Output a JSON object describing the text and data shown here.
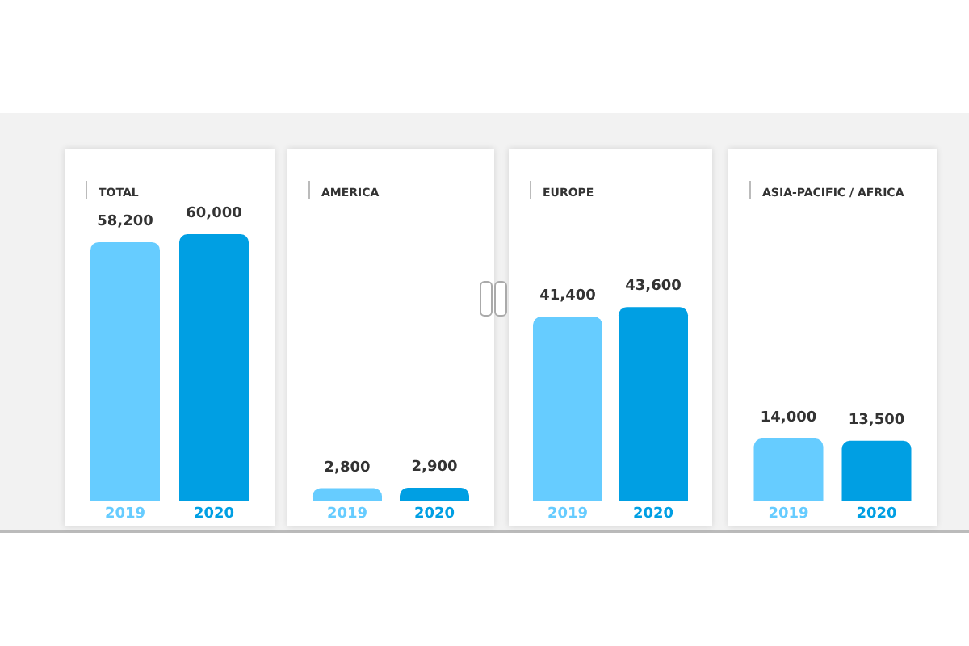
{
  "chart_data": [
    {
      "type": "bar",
      "title": "TOTAL",
      "categories": [
        "2019",
        "2020"
      ],
      "values": [
        58200,
        60000
      ],
      "colors": [
        "#66ccff",
        "#009fe3"
      ],
      "value_labels": [
        "58,200",
        "60,000"
      ]
    },
    {
      "type": "bar",
      "title": "AMERICA",
      "categories": [
        "2019",
        "2020"
      ],
      "values": [
        2800,
        2900
      ],
      "colors": [
        "#66ccff",
        "#009fe3"
      ],
      "value_labels": [
        "2,800",
        "2,900"
      ]
    },
    {
      "type": "bar",
      "title": "EUROPE",
      "categories": [
        "2019",
        "2020"
      ],
      "values": [
        41400,
        43600
      ],
      "colors": [
        "#66ccff",
        "#009fe3"
      ],
      "value_labels": [
        "41,400",
        "43,600"
      ]
    },
    {
      "type": "bar",
      "title": "ASIA-PACIFIC / AFRICA",
      "categories": [
        "2019",
        "2020"
      ],
      "values": [
        14000,
        13500
      ],
      "colors": [
        "#66ccff",
        "#009fe3"
      ],
      "value_labels": [
        "14,000",
        "13,500"
      ]
    }
  ]
}
